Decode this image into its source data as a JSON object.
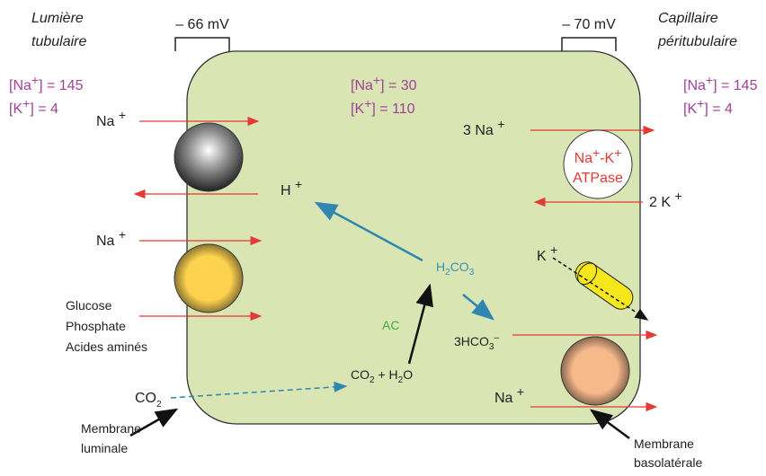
{
  "left_region": {
    "title": [
      "Lumière",
      "tubulaire"
    ],
    "concentrations": [
      [
        "[Na",
        "+",
        "] = 145"
      ],
      [
        "[K",
        "+",
        "] = 4"
      ]
    ]
  },
  "right_region": {
    "title": [
      "Capillaire",
      "péritubulaire"
    ],
    "concentrations": [
      [
        "[Na",
        "+",
        "] = 145"
      ],
      [
        "[K",
        "+",
        "] = 4"
      ]
    ]
  },
  "membrane_potentials": {
    "luminal": "– 66 mV",
    "basolateral": "– 70 mV"
  },
  "cell": {
    "concentrations": [
      [
        "[Na",
        "+",
        "] = 30"
      ],
      [
        "[K",
        "+",
        "] = 110"
      ]
    ]
  },
  "labels": {
    "na_luminal_1": [
      "Na ",
      "+"
    ],
    "na_luminal_2": [
      "Na ",
      "+"
    ],
    "cotransported": [
      "Glucose",
      "Phosphate",
      "Acides aminés"
    ],
    "co2_lumen": [
      "CO",
      "2"
    ],
    "membrane_luminal": [
      "Membrane",
      "luminale"
    ],
    "h_ion": [
      "H ",
      "+"
    ],
    "h2co3": [
      "H",
      "2",
      "CO",
      "3"
    ],
    "enzyme": "AC",
    "co2_h2o": [
      "CO",
      "2",
      " + H",
      "2",
      "O"
    ],
    "bicarbonate": [
      "3HCO",
      "3",
      "–"
    ],
    "na_pump_out": [
      "3 Na ",
      "+"
    ],
    "pump": [
      [
        "Na",
        "+",
        "-K",
        "+"
      ],
      "ATPase"
    ],
    "k_pump_in": [
      "2 K ",
      "+"
    ],
    "k_channel": [
      "K ",
      "+"
    ],
    "na_basolateral": [
      "Na ",
      "+"
    ],
    "membrane_basolateral": [
      "Membrane",
      "basolatérale"
    ]
  }
}
